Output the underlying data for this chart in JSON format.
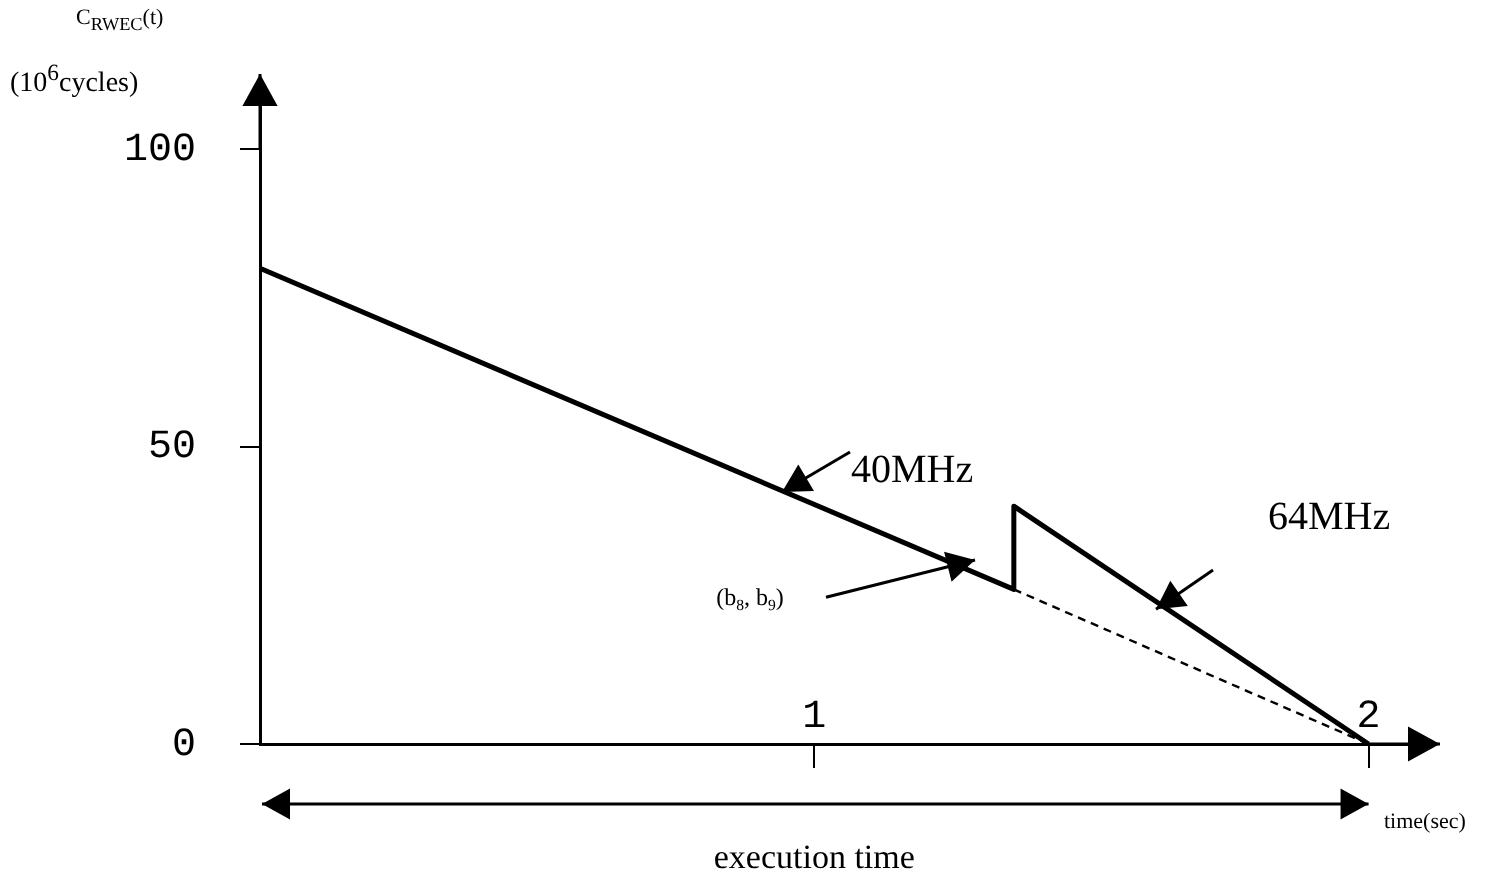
{
  "chart_data": {
    "type": "line",
    "ylabel": "C$_{RWEC}$(t)\n(10$^{6}$cycles)",
    "xlabel": "time(sec)",
    "xlim": [
      0,
      2.1
    ],
    "ylim": [
      0,
      110
    ],
    "xticks": [
      1,
      2
    ],
    "yticks": [
      0,
      50,
      100
    ],
    "series": [
      {
        "color": "#000000",
        "x": [
          0,
          1.36,
          1.36,
          2
        ],
        "values": [
          80,
          26,
          40,
          0
        ],
        "line_style": "solid"
      },
      {
        "color": "#000000",
        "x": [
          1.36,
          2
        ],
        "values": [
          26,
          0
        ],
        "line_style": "dashed"
      }
    ],
    "annotations": [
      {
        "text": "40MHz",
        "x": 0.94,
        "y": 42.5
      },
      "64MHz",
      "(b$_{8}$, b$_{9}$)",
      "execution time"
    ],
    "grid": false,
    "legend": false,
    "marker": "none"
  }
}
